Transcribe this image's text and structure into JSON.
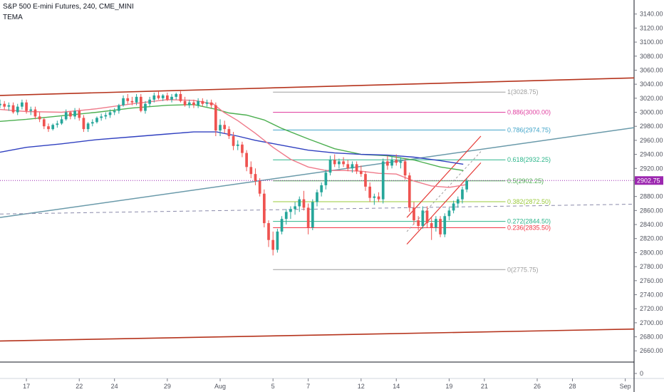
{
  "header": {
    "title": "S&P 500 E-mini Futures, 240, CME_MINI",
    "indicator": "TEMA"
  },
  "colors": {
    "up": "#26a69a",
    "down": "#ef5350",
    "channel": "#b5331c",
    "trend": "#6a9aaa",
    "pink": "#ef7a8a",
    "green": "#4caf50",
    "blue": "#3040c0",
    "dash": "#8a8aaa",
    "price_line": "#9c27b0"
  },
  "chart_data": {
    "type": "candlestick",
    "y_ticks": [
      2660,
      2680,
      2700,
      2720,
      2740,
      2760,
      2780,
      2800,
      2820,
      2840,
      2860,
      2880,
      2900,
      2920,
      2940,
      2960,
      2980,
      3000,
      3020,
      3040,
      3060,
      3080,
      3100,
      3120,
      3140
    ],
    "y_tick_labels": [
      "2660.00",
      "2680.00",
      "2700.00",
      "2720.00",
      "2740.00",
      "2760.00",
      "2780.00",
      "2800.00",
      "2820.00",
      "2840.00",
      "2860.00",
      "2880.00",
      "2900.00",
      "2920.00",
      "2940.00",
      "2960.00",
      "2980.00",
      "3000.00",
      "3020.00",
      "3040.00",
      "3060.00",
      "3080.00",
      "3100.00",
      "3120.00",
      "3140.00"
    ],
    "ylim": [
      2644,
      3160
    ],
    "x_ticks": [
      "17",
      "22",
      "24",
      "29",
      "Aug",
      "5",
      "7",
      "12",
      "14",
      "19",
      "21",
      "26",
      "28",
      "Sep"
    ],
    "x_tick_pos": [
      1,
      4,
      6,
      9,
      12,
      15,
      17,
      20,
      22,
      25,
      27,
      30,
      32,
      35
    ],
    "xlim": [
      -0.5,
      35.5
    ],
    "last_price": {
      "value": 2902.75,
      "label": "2902.75"
    },
    "volume_tick": "0",
    "fib_levels": [
      {
        "value": 3028.75,
        "label": "1(3028.75)",
        "color": "#9e9e9e"
      },
      {
        "value": 3000.0,
        "label": "0.886(3000.00)",
        "color": "#e040a0"
      },
      {
        "value": 2974.75,
        "label": "0.786(2974.75)",
        "color": "#3fa3c8"
      },
      {
        "value": 2932.25,
        "label": "0.618(2932.25)",
        "color": "#2bb58a"
      },
      {
        "value": 2902.25,
        "label": "0.5(2902.25)",
        "color": "#4caf50"
      },
      {
        "value": 2872.5,
        "label": "0.382(2872.50)",
        "color": "#9ac93a"
      },
      {
        "value": 2844.5,
        "label": "0.272(2844.50)",
        "color": "#2bb58a"
      },
      {
        "value": 2835.5,
        "label": "0.236(2835.50)",
        "color": "#f23645"
      },
      {
        "value": 2775.75,
        "label": "0(2775.75)",
        "color": "#9e9e9e"
      }
    ],
    "candles": [
      {
        "t": -0.5,
        "o": 3010,
        "h": 3018,
        "l": 3006,
        "c": 3012
      },
      {
        "t": -0.25,
        "o": 3012,
        "h": 3016,
        "l": 3004,
        "c": 3008
      },
      {
        "t": 0,
        "o": 3008,
        "h": 3014,
        "l": 3002,
        "c": 3010
      },
      {
        "t": 0.25,
        "o": 3010,
        "h": 3014,
        "l": 2998,
        "c": 3000
      },
      {
        "t": 0.5,
        "o": 3000,
        "h": 3012,
        "l": 2996,
        "c": 3008
      },
      {
        "t": 0.75,
        "o": 3008,
        "h": 3018,
        "l": 3004,
        "c": 3014
      },
      {
        "t": 1,
        "o": 3014,
        "h": 3018,
        "l": 2998,
        "c": 3002
      },
      {
        "t": 1.25,
        "o": 3002,
        "h": 3008,
        "l": 2996,
        "c": 3004
      },
      {
        "t": 1.5,
        "o": 3004,
        "h": 3008,
        "l": 2990,
        "c": 2994
      },
      {
        "t": 1.75,
        "o": 2994,
        "h": 3000,
        "l": 2986,
        "c": 2990
      },
      {
        "t": 2,
        "o": 2990,
        "h": 2992,
        "l": 2976,
        "c": 2980
      },
      {
        "t": 2.25,
        "o": 2980,
        "h": 2984,
        "l": 2972,
        "c": 2976
      },
      {
        "t": 2.5,
        "o": 2976,
        "h": 2984,
        "l": 2974,
        "c": 2982
      },
      {
        "t": 2.75,
        "o": 2982,
        "h": 2988,
        "l": 2978,
        "c": 2984
      },
      {
        "t": 3,
        "o": 2984,
        "h": 2994,
        "l": 2982,
        "c": 2990
      },
      {
        "t": 3.25,
        "o": 2990,
        "h": 3004,
        "l": 2988,
        "c": 3000
      },
      {
        "t": 3.5,
        "o": 3000,
        "h": 3002,
        "l": 2990,
        "c": 2994
      },
      {
        "t": 3.75,
        "o": 2994,
        "h": 3006,
        "l": 2990,
        "c": 3002
      },
      {
        "t": 4,
        "o": 3002,
        "h": 3006,
        "l": 2988,
        "c": 2992
      },
      {
        "t": 4.25,
        "o": 2992,
        "h": 2996,
        "l": 2972,
        "c": 2976
      },
      {
        "t": 4.5,
        "o": 2976,
        "h": 2986,
        "l": 2972,
        "c": 2984
      },
      {
        "t": 4.75,
        "o": 2984,
        "h": 2990,
        "l": 2980,
        "c": 2986
      },
      {
        "t": 5,
        "o": 2986,
        "h": 2994,
        "l": 2984,
        "c": 2992
      },
      {
        "t": 5.25,
        "o": 2992,
        "h": 2998,
        "l": 2988,
        "c": 2994
      },
      {
        "t": 5.5,
        "o": 2994,
        "h": 3000,
        "l": 2990,
        "c": 2996
      },
      {
        "t": 5.75,
        "o": 2996,
        "h": 3004,
        "l": 2992,
        "c": 3000
      },
      {
        "t": 6,
        "o": 3000,
        "h": 3006,
        "l": 2996,
        "c": 3002
      },
      {
        "t": 6.25,
        "o": 3002,
        "h": 3012,
        "l": 2998,
        "c": 3010
      },
      {
        "t": 6.5,
        "o": 3010,
        "h": 3024,
        "l": 3008,
        "c": 3020
      },
      {
        "t": 6.75,
        "o": 3020,
        "h": 3026,
        "l": 3012,
        "c": 3016
      },
      {
        "t": 7,
        "o": 3016,
        "h": 3022,
        "l": 3010,
        "c": 3014
      },
      {
        "t": 7.25,
        "o": 3014,
        "h": 3026,
        "l": 3010,
        "c": 3022
      },
      {
        "t": 7.5,
        "o": 3022,
        "h": 3026,
        "l": 3000,
        "c": 3002
      },
      {
        "t": 7.75,
        "o": 3002,
        "h": 3016,
        "l": 2998,
        "c": 3012
      },
      {
        "t": 8,
        "o": 3012,
        "h": 3022,
        "l": 3008,
        "c": 3018
      },
      {
        "t": 8.25,
        "o": 3018,
        "h": 3028,
        "l": 3014,
        "c": 3024
      },
      {
        "t": 8.5,
        "o": 3024,
        "h": 3030,
        "l": 3018,
        "c": 3020
      },
      {
        "t": 8.75,
        "o": 3020,
        "h": 3026,
        "l": 3016,
        "c": 3024
      },
      {
        "t": 9,
        "o": 3024,
        "h": 3028,
        "l": 3016,
        "c": 3018
      },
      {
        "t": 9.25,
        "o": 3018,
        "h": 3026,
        "l": 3014,
        "c": 3022
      },
      {
        "t": 9.5,
        "o": 3022,
        "h": 3028,
        "l": 3018,
        "c": 3026
      },
      {
        "t": 9.75,
        "o": 3026,
        "h": 3030,
        "l": 3014,
        "c": 3016
      },
      {
        "t": 10,
        "o": 3016,
        "h": 3022,
        "l": 3008,
        "c": 3010
      },
      {
        "t": 10.25,
        "o": 3010,
        "h": 3018,
        "l": 3006,
        "c": 3014
      },
      {
        "t": 10.5,
        "o": 3014,
        "h": 3018,
        "l": 3006,
        "c": 3010
      },
      {
        "t": 10.75,
        "o": 3010,
        "h": 3020,
        "l": 3006,
        "c": 3016
      },
      {
        "t": 11,
        "o": 3016,
        "h": 3020,
        "l": 3008,
        "c": 3012
      },
      {
        "t": 11.25,
        "o": 3012,
        "h": 3018,
        "l": 3008,
        "c": 3014
      },
      {
        "t": 11.5,
        "o": 3014,
        "h": 3018,
        "l": 3006,
        "c": 3010
      },
      {
        "t": 11.75,
        "o": 3010,
        "h": 3014,
        "l": 2966,
        "c": 2974
      },
      {
        "t": 12,
        "o": 2974,
        "h": 2990,
        "l": 2966,
        "c": 2982
      },
      {
        "t": 12.25,
        "o": 2982,
        "h": 2988,
        "l": 2970,
        "c": 2976
      },
      {
        "t": 12.5,
        "o": 2976,
        "h": 2980,
        "l": 2962,
        "c": 2966
      },
      {
        "t": 12.75,
        "o": 2966,
        "h": 2972,
        "l": 2946,
        "c": 2952
      },
      {
        "t": 13,
        "o": 2952,
        "h": 2960,
        "l": 2946,
        "c": 2954
      },
      {
        "t": 13.25,
        "o": 2954,
        "h": 2958,
        "l": 2936,
        "c": 2942
      },
      {
        "t": 13.5,
        "o": 2942,
        "h": 2946,
        "l": 2916,
        "c": 2922
      },
      {
        "t": 13.75,
        "o": 2922,
        "h": 2930,
        "l": 2906,
        "c": 2912
      },
      {
        "t": 14,
        "o": 2912,
        "h": 2920,
        "l": 2896,
        "c": 2902
      },
      {
        "t": 14.25,
        "o": 2902,
        "h": 2906,
        "l": 2880,
        "c": 2884
      },
      {
        "t": 14.5,
        "o": 2884,
        "h": 2890,
        "l": 2836,
        "c": 2842
      },
      {
        "t": 14.75,
        "o": 2842,
        "h": 2846,
        "l": 2808,
        "c": 2818
      },
      {
        "t": 15,
        "o": 2818,
        "h": 2830,
        "l": 2796,
        "c": 2804
      },
      {
        "t": 15.25,
        "o": 2804,
        "h": 2834,
        "l": 2800,
        "c": 2830
      },
      {
        "t": 15.5,
        "o": 2830,
        "h": 2852,
        "l": 2826,
        "c": 2848
      },
      {
        "t": 15.75,
        "o": 2848,
        "h": 2862,
        "l": 2840,
        "c": 2858
      },
      {
        "t": 16,
        "o": 2858,
        "h": 2866,
        "l": 2848,
        "c": 2862
      },
      {
        "t": 16.25,
        "o": 2862,
        "h": 2872,
        "l": 2854,
        "c": 2866
      },
      {
        "t": 16.5,
        "o": 2866,
        "h": 2880,
        "l": 2858,
        "c": 2876
      },
      {
        "t": 16.75,
        "o": 2876,
        "h": 2888,
        "l": 2860,
        "c": 2864
      },
      {
        "t": 17,
        "o": 2864,
        "h": 2870,
        "l": 2826,
        "c": 2836
      },
      {
        "t": 17.25,
        "o": 2836,
        "h": 2876,
        "l": 2832,
        "c": 2872
      },
      {
        "t": 17.5,
        "o": 2872,
        "h": 2890,
        "l": 2866,
        "c": 2886
      },
      {
        "t": 17.75,
        "o": 2886,
        "h": 2900,
        "l": 2880,
        "c": 2896
      },
      {
        "t": 18,
        "o": 2896,
        "h": 2918,
        "l": 2890,
        "c": 2914
      },
      {
        "t": 18.25,
        "o": 2914,
        "h": 2938,
        "l": 2910,
        "c": 2932
      },
      {
        "t": 18.5,
        "o": 2932,
        "h": 2940,
        "l": 2922,
        "c": 2926
      },
      {
        "t": 18.75,
        "o": 2926,
        "h": 2934,
        "l": 2920,
        "c": 2930
      },
      {
        "t": 19,
        "o": 2930,
        "h": 2936,
        "l": 2922,
        "c": 2926
      },
      {
        "t": 19.25,
        "o": 2926,
        "h": 2932,
        "l": 2916,
        "c": 2920
      },
      {
        "t": 19.5,
        "o": 2920,
        "h": 2930,
        "l": 2914,
        "c": 2926
      },
      {
        "t": 19.75,
        "o": 2926,
        "h": 2930,
        "l": 2912,
        "c": 2916
      },
      {
        "t": 20,
        "o": 2916,
        "h": 2924,
        "l": 2908,
        "c": 2912
      },
      {
        "t": 20.25,
        "o": 2912,
        "h": 2916,
        "l": 2888,
        "c": 2894
      },
      {
        "t": 20.5,
        "o": 2894,
        "h": 2900,
        "l": 2872,
        "c": 2878
      },
      {
        "t": 20.75,
        "o": 2878,
        "h": 2884,
        "l": 2868,
        "c": 2880
      },
      {
        "t": 21,
        "o": 2880,
        "h": 2886,
        "l": 2872,
        "c": 2876
      },
      {
        "t": 21.25,
        "o": 2876,
        "h": 2934,
        "l": 2870,
        "c": 2930
      },
      {
        "t": 21.5,
        "o": 2930,
        "h": 2938,
        "l": 2918,
        "c": 2924
      },
      {
        "t": 21.75,
        "o": 2924,
        "h": 2938,
        "l": 2920,
        "c": 2932
      },
      {
        "t": 22,
        "o": 2932,
        "h": 2940,
        "l": 2924,
        "c": 2928
      },
      {
        "t": 22.25,
        "o": 2928,
        "h": 2936,
        "l": 2920,
        "c": 2930
      },
      {
        "t": 22.5,
        "o": 2930,
        "h": 2934,
        "l": 2904,
        "c": 2910
      },
      {
        "t": 22.75,
        "o": 2910,
        "h": 2914,
        "l": 2858,
        "c": 2864
      },
      {
        "t": 23,
        "o": 2864,
        "h": 2872,
        "l": 2840,
        "c": 2846
      },
      {
        "t": 23.25,
        "o": 2846,
        "h": 2852,
        "l": 2832,
        "c": 2838
      },
      {
        "t": 23.5,
        "o": 2838,
        "h": 2866,
        "l": 2834,
        "c": 2860
      },
      {
        "t": 23.75,
        "o": 2860,
        "h": 2866,
        "l": 2836,
        "c": 2842
      },
      {
        "t": 24,
        "o": 2842,
        "h": 2850,
        "l": 2818,
        "c": 2836
      },
      {
        "t": 24.25,
        "o": 2836,
        "h": 2852,
        "l": 2830,
        "c": 2848
      },
      {
        "t": 24.5,
        "o": 2848,
        "h": 2852,
        "l": 2822,
        "c": 2826
      },
      {
        "t": 24.75,
        "o": 2826,
        "h": 2856,
        "l": 2822,
        "c": 2852
      },
      {
        "t": 25,
        "o": 2852,
        "h": 2864,
        "l": 2846,
        "c": 2860
      },
      {
        "t": 25.25,
        "o": 2860,
        "h": 2874,
        "l": 2856,
        "c": 2870
      },
      {
        "t": 25.5,
        "o": 2870,
        "h": 2880,
        "l": 2864,
        "c": 2876
      },
      {
        "t": 25.75,
        "o": 2876,
        "h": 2894,
        "l": 2870,
        "c": 2890
      },
      {
        "t": 26,
        "o": 2890,
        "h": 2906,
        "l": 2886,
        "c": 2902
      }
    ]
  }
}
